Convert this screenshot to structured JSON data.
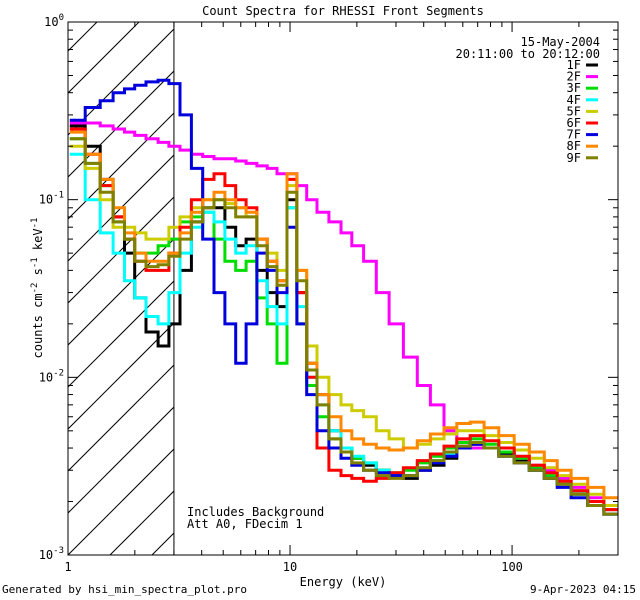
{
  "chart_data": {
    "type": "line",
    "title": "Count Spectra for RHESSI Front Segments",
    "xlabel": "Energy (keV)",
    "ylabel_parts": [
      "counts cm",
      "-2",
      " s",
      "-1",
      " keV",
      "-1"
    ],
    "xscale": "log",
    "yscale": "log",
    "xlim": [
      1,
      300
    ],
    "ylim": [
      0.001,
      1
    ],
    "x_ticks": [
      {
        "value": 1,
        "label": "1"
      },
      {
        "value": 10,
        "label": "10"
      },
      {
        "value": 100,
        "label": "100"
      }
    ],
    "y_ticks": [
      {
        "value": 1,
        "base": "10",
        "exp": "0"
      },
      {
        "value": 0.1,
        "base": "10",
        "exp": "-1"
      },
      {
        "value": 0.01,
        "base": "10",
        "exp": "-2"
      },
      {
        "value": 0.001,
        "base": "10",
        "exp": "-3"
      }
    ],
    "date_label": "15-May-2004",
    "time_label": "20:11:00 to 20:12:00",
    "annotations": [
      "Includes Background",
      "Att A0, FDecim 1"
    ],
    "hatched_region": {
      "x_from": 1,
      "x_to": 3
    },
    "series": [
      {
        "name": "1F",
        "color": "#000000",
        "x": [
          1.1,
          1.3,
          1.5,
          1.7,
          1.9,
          2.1,
          2.4,
          2.7,
          3.0,
          3.4,
          3.8,
          4.3,
          4.8,
          5.4,
          6.0,
          6.7,
          7.5,
          8.3,
          9.2,
          10.2,
          11.3,
          12.5,
          14,
          16,
          18,
          20,
          23,
          26,
          30,
          35,
          40,
          46,
          53,
          60,
          70,
          80,
          95,
          110,
          130,
          150,
          170,
          200,
          240,
          280
        ],
        "y": [
          0.26,
          0.2,
          0.13,
          0.08,
          0.05,
          0.028,
          0.018,
          0.015,
          0.02,
          0.04,
          0.075,
          0.09,
          0.09,
          0.07,
          0.055,
          0.06,
          0.04,
          0.03,
          0.025,
          0.1,
          0.03,
          0.012,
          0.008,
          0.005,
          0.004,
          0.0035,
          0.0032,
          0.003,
          0.0028,
          0.0027,
          0.003,
          0.0032,
          0.0035,
          0.004,
          0.0042,
          0.004,
          0.0037,
          0.0034,
          0.003,
          0.0027,
          0.0025,
          0.0022,
          0.0019,
          0.0017
        ]
      },
      {
        "name": "2F",
        "color": "#ff00ff",
        "x": [
          1.1,
          1.3,
          1.5,
          1.7,
          1.9,
          2.1,
          2.4,
          2.7,
          3.0,
          3.4,
          3.8,
          4.3,
          4.8,
          5.4,
          6.0,
          6.7,
          7.5,
          8.3,
          9.2,
          10.2,
          11.3,
          12.5,
          14,
          16,
          18,
          20,
          23,
          26,
          30,
          35,
          40,
          46,
          53,
          60,
          70,
          80,
          95,
          110,
          130,
          150,
          170,
          200,
          240,
          280
        ],
        "y": [
          0.27,
          0.27,
          0.26,
          0.25,
          0.24,
          0.23,
          0.22,
          0.21,
          0.2,
          0.19,
          0.18,
          0.175,
          0.17,
          0.17,
          0.165,
          0.16,
          0.155,
          0.15,
          0.14,
          0.14,
          0.12,
          0.1,
          0.085,
          0.075,
          0.065,
          0.055,
          0.045,
          0.03,
          0.02,
          0.013,
          0.009,
          0.007,
          0.005,
          0.0045,
          0.004,
          0.004,
          0.0038,
          0.0035,
          0.0032,
          0.003,
          0.0027,
          0.0024,
          0.0021,
          0.0018
        ]
      },
      {
        "name": "3F",
        "color": "#00dd00",
        "x": [
          1.1,
          1.3,
          1.5,
          1.7,
          1.9,
          2.1,
          2.4,
          2.7,
          3.0,
          3.4,
          3.8,
          4.3,
          4.8,
          5.4,
          6.0,
          6.7,
          7.5,
          8.3,
          9.2,
          10.2,
          11.3,
          12.5,
          14,
          16,
          18,
          20,
          23,
          26,
          30,
          35,
          40,
          46,
          53,
          60,
          70,
          80,
          95,
          110,
          130,
          150,
          170,
          200,
          240,
          280
        ],
        "y": [
          0.22,
          0.16,
          0.12,
          0.075,
          0.06,
          0.05,
          0.05,
          0.055,
          0.06,
          0.075,
          0.08,
          0.085,
          0.06,
          0.045,
          0.04,
          0.045,
          0.028,
          0.02,
          0.012,
          0.09,
          0.02,
          0.009,
          0.006,
          0.0045,
          0.004,
          0.0035,
          0.0033,
          0.003,
          0.0029,
          0.003,
          0.0033,
          0.0036,
          0.004,
          0.0043,
          0.0045,
          0.0042,
          0.0038,
          0.0035,
          0.0031,
          0.0028,
          0.0026,
          0.0023,
          0.002,
          0.0018
        ]
      },
      {
        "name": "4F",
        "color": "#00ffff",
        "x": [
          1.1,
          1.3,
          1.5,
          1.7,
          1.9,
          2.1,
          2.4,
          2.7,
          3.0,
          3.4,
          3.8,
          4.3,
          4.8,
          5.4,
          6.0,
          6.7,
          7.5,
          8.3,
          9.2,
          10.2,
          11.3,
          12.5,
          14,
          16,
          18,
          20,
          23,
          26,
          30,
          35,
          40,
          46,
          53,
          60,
          70,
          80,
          95,
          110,
          130,
          150,
          170,
          200,
          240,
          280
        ],
        "y": [
          0.18,
          0.1,
          0.065,
          0.05,
          0.035,
          0.028,
          0.022,
          0.02,
          0.03,
          0.05,
          0.07,
          0.085,
          0.075,
          0.06,
          0.05,
          0.055,
          0.035,
          0.025,
          0.02,
          0.09,
          0.025,
          0.01,
          0.007,
          0.005,
          0.004,
          0.0036,
          0.0033,
          0.003,
          0.0028,
          0.0028,
          0.0031,
          0.0034,
          0.0037,
          0.0041,
          0.0043,
          0.004,
          0.0036,
          0.0033,
          0.003,
          0.0027,
          0.0025,
          0.0022,
          0.0019,
          0.0017
        ]
      },
      {
        "name": "5F",
        "color": "#cccc00",
        "x": [
          1.1,
          1.3,
          1.5,
          1.7,
          1.9,
          2.1,
          2.4,
          2.7,
          3.0,
          3.4,
          3.8,
          4.3,
          4.8,
          5.4,
          6.0,
          6.7,
          7.5,
          8.3,
          9.2,
          10.2,
          11.3,
          12.5,
          14,
          16,
          18,
          20,
          23,
          26,
          30,
          35,
          40,
          46,
          53,
          60,
          70,
          80,
          95,
          110,
          130,
          150,
          170,
          200,
          240,
          280
        ],
        "y": [
          0.2,
          0.15,
          0.1,
          0.07,
          0.07,
          0.065,
          0.06,
          0.06,
          0.07,
          0.08,
          0.09,
          0.1,
          0.1,
          0.095,
          0.09,
          0.08,
          0.06,
          0.05,
          0.04,
          0.12,
          0.04,
          0.015,
          0.01,
          0.008,
          0.007,
          0.0065,
          0.006,
          0.005,
          0.0045,
          0.004,
          0.0042,
          0.0045,
          0.0048,
          0.005,
          0.005,
          0.0047,
          0.0043,
          0.0039,
          0.0035,
          0.0031,
          0.0028,
          0.0025,
          0.0022,
          0.0019
        ]
      },
      {
        "name": "6F",
        "color": "#ff0000",
        "x": [
          1.1,
          1.3,
          1.5,
          1.7,
          1.9,
          2.1,
          2.4,
          2.7,
          3.0,
          3.4,
          3.8,
          4.3,
          4.8,
          5.4,
          6.0,
          6.7,
          7.5,
          8.3,
          9.2,
          10.2,
          11.3,
          12.5,
          14,
          16,
          18,
          20,
          23,
          26,
          30,
          35,
          40,
          46,
          53,
          60,
          70,
          80,
          95,
          110,
          130,
          150,
          170,
          200,
          240,
          280
        ],
        "y": [
          0.25,
          0.18,
          0.12,
          0.08,
          0.06,
          0.045,
          0.04,
          0.04,
          0.05,
          0.07,
          0.1,
          0.13,
          0.14,
          0.12,
          0.1,
          0.09,
          0.06,
          0.045,
          0.035,
          0.13,
          0.03,
          0.01,
          0.004,
          0.003,
          0.0028,
          0.0027,
          0.0026,
          0.0027,
          0.0029,
          0.0031,
          0.0034,
          0.0037,
          0.0041,
          0.0045,
          0.0047,
          0.0044,
          0.004,
          0.0036,
          0.0032,
          0.0029,
          0.0026,
          0.0023,
          0.002,
          0.0018
        ]
      },
      {
        "name": "7F",
        "color": "#0000dd",
        "x": [
          1.1,
          1.3,
          1.5,
          1.7,
          1.9,
          2.1,
          2.4,
          2.7,
          3.0,
          3.4,
          3.8,
          4.3,
          4.8,
          5.4,
          6.0,
          6.7,
          7.5,
          8.3,
          9.2,
          10.2,
          11.3,
          12.5,
          14,
          16,
          18,
          20,
          23,
          26,
          30,
          35,
          40,
          46,
          53,
          60,
          70,
          80,
          95,
          110,
          130,
          150,
          170,
          200,
          240,
          280
        ],
        "y": [
          0.28,
          0.33,
          0.36,
          0.4,
          0.42,
          0.44,
          0.46,
          0.47,
          0.45,
          0.3,
          0.15,
          0.06,
          0.03,
          0.02,
          0.012,
          0.02,
          0.05,
          0.04,
          0.03,
          0.07,
          0.02,
          0.008,
          0.005,
          0.004,
          0.0035,
          0.0032,
          0.003,
          0.0029,
          0.0028,
          0.0028,
          0.003,
          0.0033,
          0.0036,
          0.004,
          0.0042,
          0.004,
          0.0036,
          0.0033,
          0.003,
          0.0027,
          0.0024,
          0.0021,
          0.0019,
          0.0017
        ]
      },
      {
        "name": "8F",
        "color": "#ff8800",
        "x": [
          1.1,
          1.3,
          1.5,
          1.7,
          1.9,
          2.1,
          2.4,
          2.7,
          3.0,
          3.4,
          3.8,
          4.3,
          4.8,
          5.4,
          6.0,
          6.7,
          7.5,
          8.3,
          9.2,
          10.2,
          11.3,
          12.5,
          14,
          16,
          18,
          20,
          23,
          26,
          30,
          35,
          40,
          46,
          53,
          60,
          70,
          80,
          95,
          110,
          130,
          150,
          170,
          200,
          240,
          280
        ],
        "y": [
          0.24,
          0.18,
          0.13,
          0.09,
          0.065,
          0.05,
          0.045,
          0.045,
          0.05,
          0.065,
          0.085,
          0.1,
          0.11,
          0.1,
          0.09,
          0.085,
          0.06,
          0.045,
          0.035,
          0.14,
          0.04,
          0.012,
          0.008,
          0.006,
          0.005,
          0.0045,
          0.0042,
          0.004,
          0.0039,
          0.004,
          0.0044,
          0.0048,
          0.0052,
          0.0055,
          0.0056,
          0.0052,
          0.0047,
          0.0042,
          0.0038,
          0.0034,
          0.003,
          0.0027,
          0.0024,
          0.0021
        ]
      },
      {
        "name": "9F",
        "color": "#808000",
        "x": [
          1.1,
          1.3,
          1.5,
          1.7,
          1.9,
          2.1,
          2.4,
          2.7,
          3.0,
          3.4,
          3.8,
          4.3,
          4.8,
          5.4,
          6.0,
          6.7,
          7.5,
          8.3,
          9.2,
          10.2,
          11.3,
          12.5,
          14,
          16,
          18,
          20,
          23,
          26,
          30,
          35,
          40,
          46,
          53,
          60,
          70,
          80,
          95,
          110,
          130,
          150,
          170,
          200,
          240,
          280
        ],
        "y": [
          0.22,
          0.16,
          0.11,
          0.075,
          0.06,
          0.045,
          0.042,
          0.043,
          0.048,
          0.06,
          0.075,
          0.09,
          0.1,
          0.09,
          0.08,
          0.08,
          0.055,
          0.042,
          0.033,
          0.11,
          0.035,
          0.011,
          0.007,
          0.0045,
          0.0038,
          0.0033,
          0.003,
          0.0028,
          0.0027,
          0.0028,
          0.0031,
          0.0034,
          0.0038,
          0.0041,
          0.0043,
          0.004,
          0.0036,
          0.0033,
          0.003,
          0.0027,
          0.0025,
          0.0022,
          0.0019,
          0.0017
        ]
      }
    ]
  },
  "footer": {
    "left": "Generated by hsi_min_spectra_plot.pro",
    "right": "9-Apr-2023 04:15"
  }
}
